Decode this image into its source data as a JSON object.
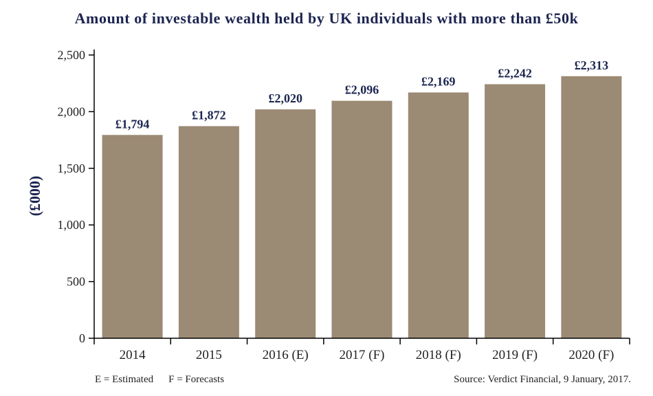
{
  "chart_data": {
    "type": "bar",
    "title": "Amount of investable wealth held by UK individuals with more than £50k",
    "ylabel": "(£000)",
    "xlabel": "",
    "categories": [
      "2014",
      "2015",
      "2016 (E)",
      "2017 (F)",
      "2018 (F)",
      "2019 (F)",
      "2020 (F)"
    ],
    "values": [
      1794,
      1872,
      2020,
      2096,
      2169,
      2242,
      2313
    ],
    "data_labels": [
      "£1,794",
      "£1,872",
      "£2,020",
      "£2,096",
      "£2,169",
      "£2,242",
      "£2,313"
    ],
    "ylim": [
      0,
      2500
    ],
    "yticks": [
      0,
      500,
      1000,
      1500,
      2000,
      2500
    ],
    "ytick_labels": [
      "0",
      "500",
      "1,000",
      "1,500",
      "2,000",
      "2,500"
    ],
    "grid": false,
    "bar_color": "#9b8a74",
    "label_color": "#1c2550"
  },
  "footer": {
    "estimated": "E = Estimated",
    "forecasts": "F = Forecasts",
    "source": "Source: Verdict Financial, 9 January, 2017."
  }
}
